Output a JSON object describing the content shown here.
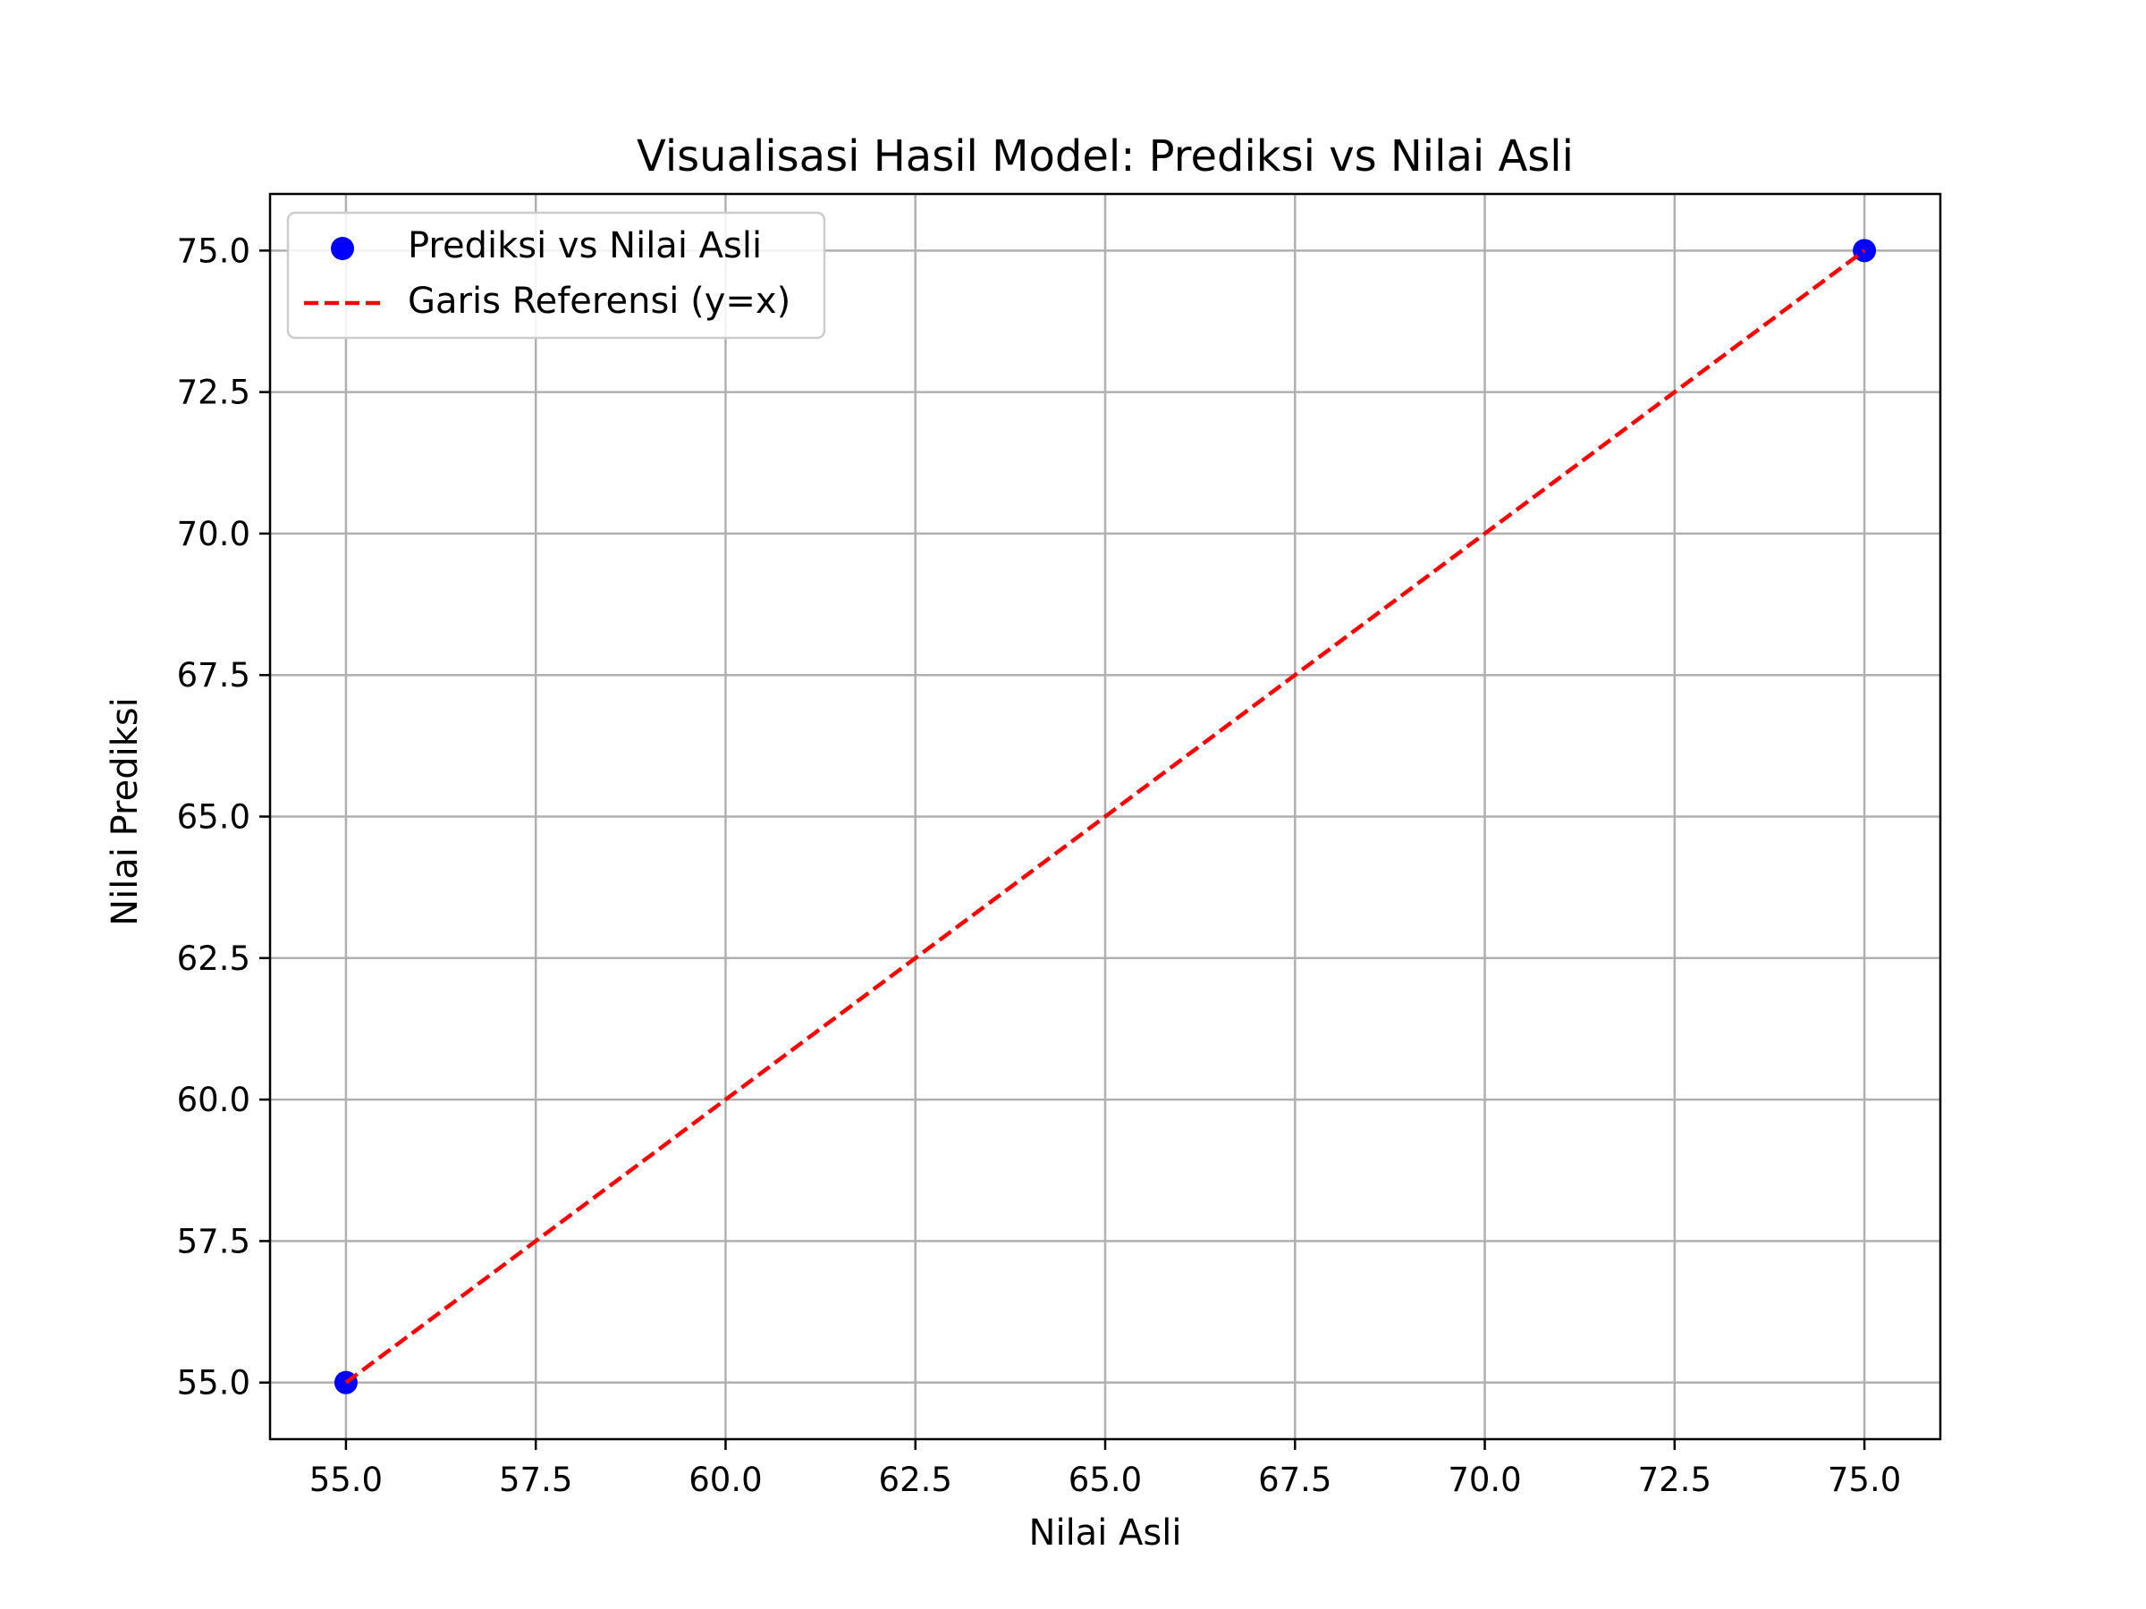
{
  "chart_data": {
    "type": "scatter",
    "title": "Visualisasi Hasil Model: Prediksi vs Nilai Asli",
    "xlabel": "Nilai Asli",
    "ylabel": "Nilai Prediksi",
    "xlim": [
      54,
      76
    ],
    "ylim": [
      54,
      76
    ],
    "xticks": [
      55.0,
      57.5,
      60.0,
      62.5,
      65.0,
      67.5,
      70.0,
      72.5,
      75.0
    ],
    "yticks": [
      55.0,
      57.5,
      60.0,
      62.5,
      65.0,
      67.5,
      70.0,
      72.5,
      75.0
    ],
    "xtick_labels": [
      "55.0",
      "57.5",
      "60.0",
      "62.5",
      "65.0",
      "67.5",
      "70.0",
      "72.5",
      "75.0"
    ],
    "ytick_labels": [
      "55.0",
      "57.5",
      "60.0",
      "62.5",
      "65.0",
      "67.5",
      "70.0",
      "72.5",
      "75.0"
    ],
    "grid": true,
    "legend_position": "top-left",
    "series": [
      {
        "name": "Prediksi vs Nilai Asli",
        "kind": "scatter",
        "color": "#0000ff",
        "x": [
          55,
          75
        ],
        "y": [
          55,
          75
        ]
      },
      {
        "name": "Garis Referensi (y=x)",
        "kind": "line",
        "style": "dashed",
        "color": "#ff0000",
        "x": [
          55,
          75
        ],
        "y": [
          55,
          75
        ]
      }
    ]
  }
}
